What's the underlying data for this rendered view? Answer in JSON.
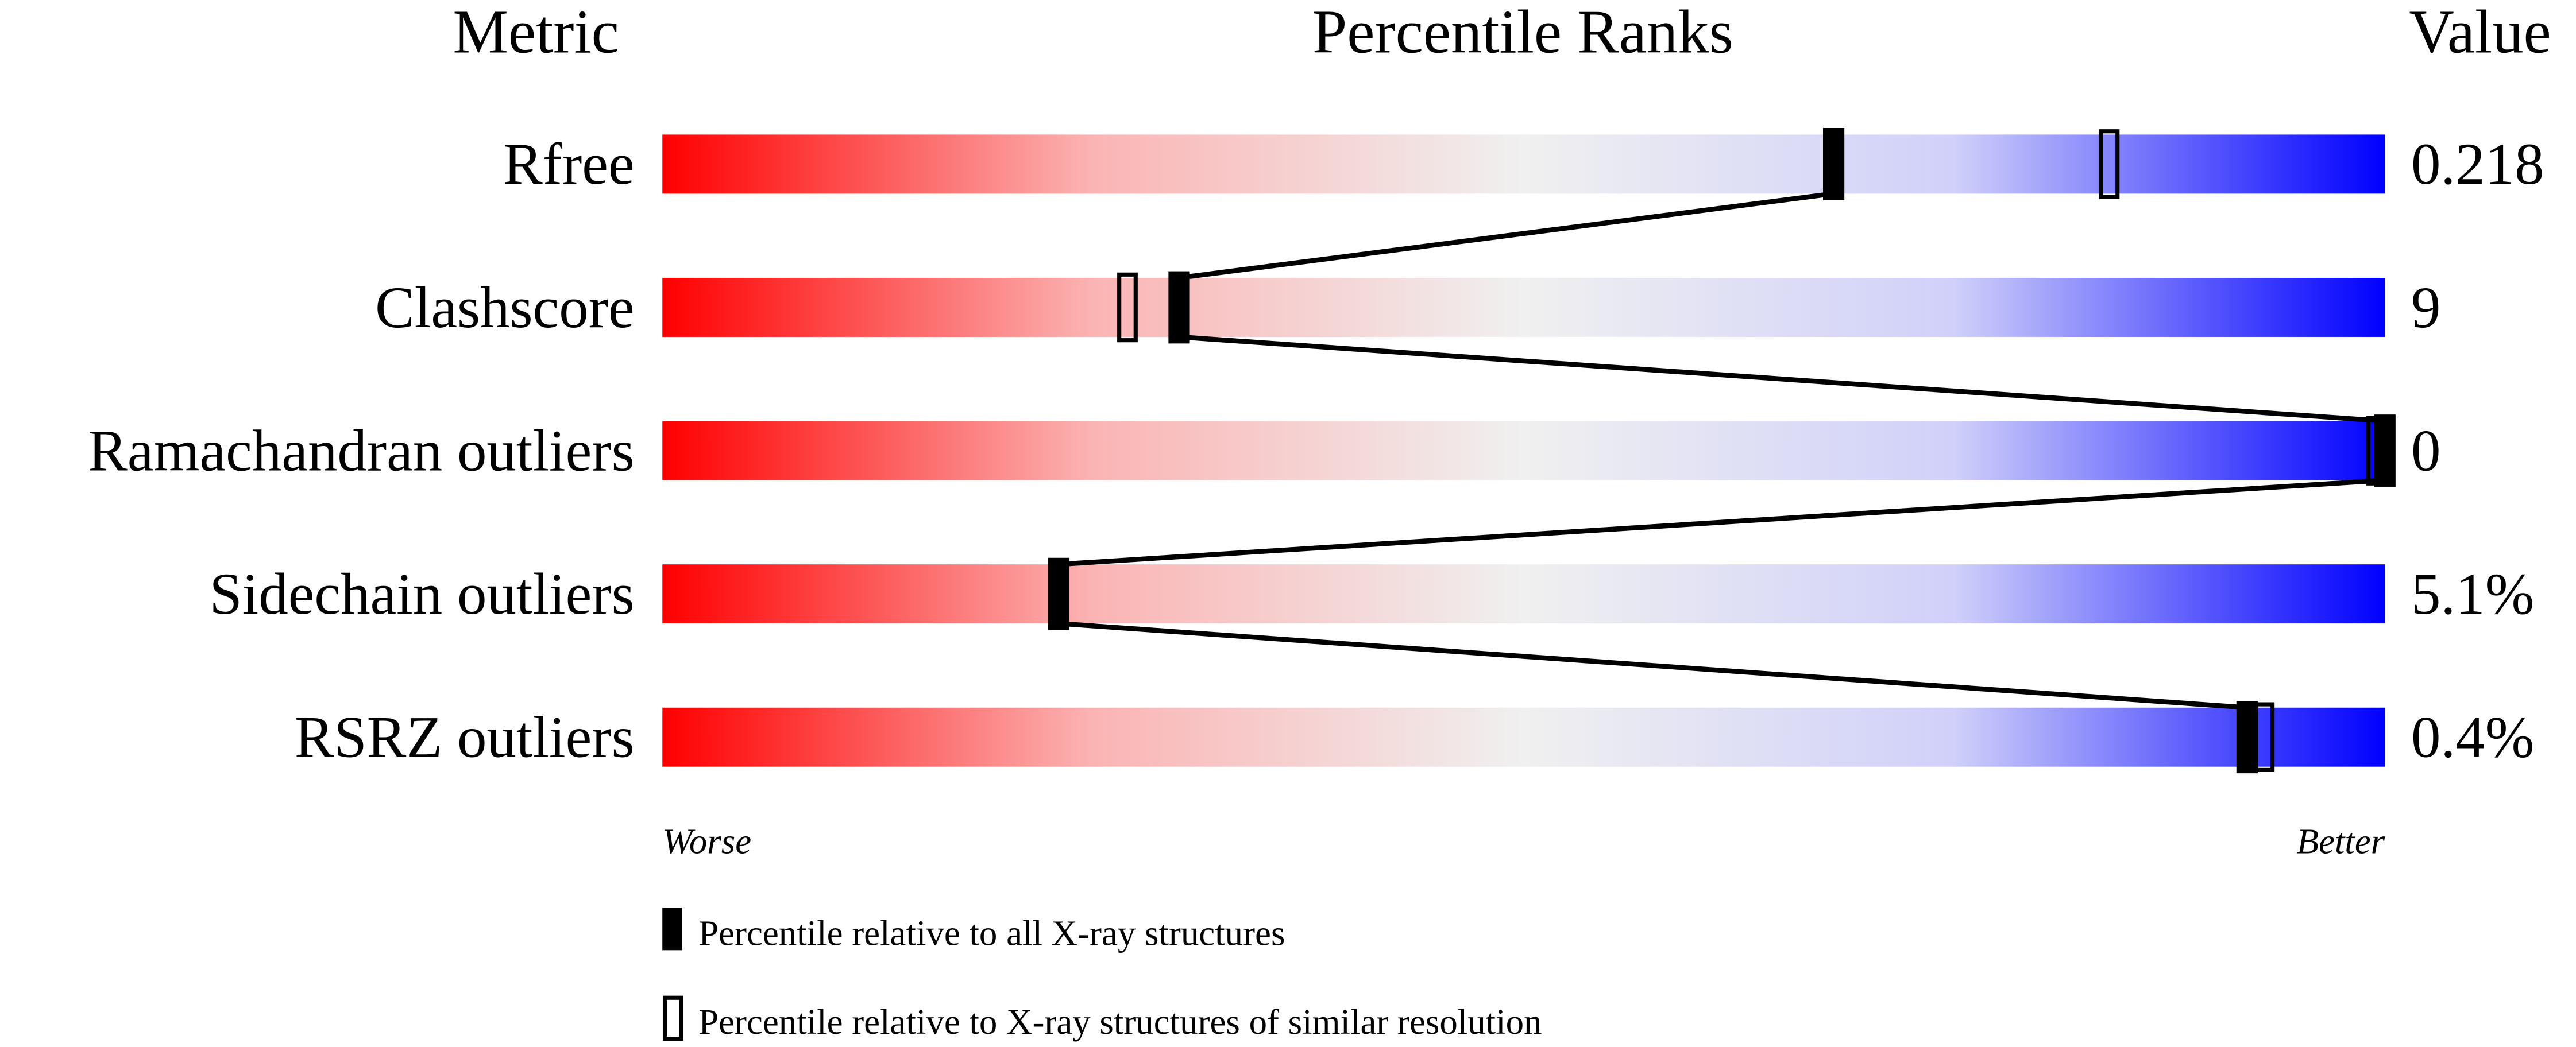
{
  "chart_data": {
    "type": "percentile-bar",
    "headers": {
      "metric": "Metric",
      "ranks": "Percentile Ranks",
      "value": "Value"
    },
    "xlim": [
      0,
      100
    ],
    "axis_labels": {
      "left": "Worse",
      "right": "Better"
    },
    "gradient_colors": [
      "#ff0000",
      "#f0f0f0",
      "#0000ff"
    ],
    "rows": [
      {
        "metric": "Rfree",
        "value": "0.218",
        "percentile_all": 68,
        "percentile_similar": 84
      },
      {
        "metric": "Clashscore",
        "value": "9",
        "percentile_all": 30,
        "percentile_similar": 27
      },
      {
        "metric": "Ramachandran outliers",
        "value": "0",
        "percentile_all": 100,
        "percentile_similar": 100
      },
      {
        "metric": "Sidechain outliers",
        "value": "5.1%",
        "percentile_all": 23,
        "percentile_similar": 23
      },
      {
        "metric": "RSRZ outliers",
        "value": "0.4%",
        "percentile_all": 92,
        "percentile_similar": 93
      }
    ],
    "legend": [
      {
        "marker": "filled",
        "label": "Percentile relative to all X-ray structures"
      },
      {
        "marker": "open",
        "label": "Percentile relative to X-ray structures of similar resolution"
      }
    ]
  }
}
